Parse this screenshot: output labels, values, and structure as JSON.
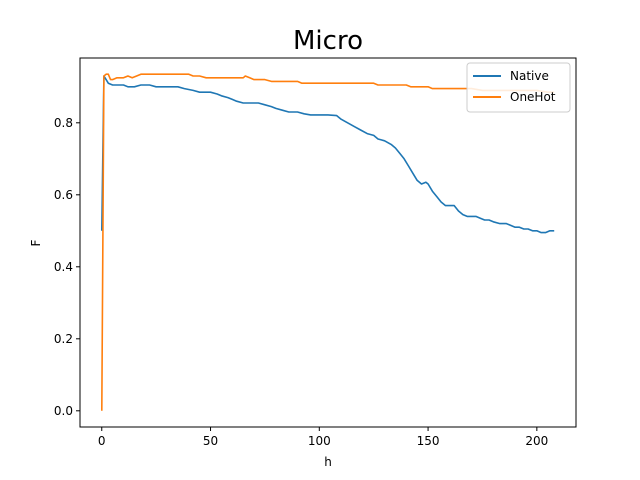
{
  "chart_data": {
    "type": "line",
    "title": "Micro",
    "xlabel": "h",
    "ylabel": "F",
    "xlim": [
      -10,
      218
    ],
    "ylim": [
      -0.045,
      0.98
    ],
    "xticks": [
      0,
      50,
      100,
      150,
      200
    ],
    "yticks": [
      0.0,
      0.2,
      0.4,
      0.6,
      0.8
    ],
    "ytick_labels": [
      "0.0",
      "0.2",
      "0.4",
      "0.6",
      "0.8"
    ],
    "grid": false,
    "legend": {
      "position": "top-right"
    },
    "series": [
      {
        "name": "Native",
        "color": "#1f77b4",
        "points": [
          [
            0,
            0.5
          ],
          [
            1,
            0.93
          ],
          [
            2,
            0.92
          ],
          [
            3,
            0.91
          ],
          [
            5,
            0.905
          ],
          [
            10,
            0.905
          ],
          [
            12,
            0.9
          ],
          [
            15,
            0.9
          ],
          [
            18,
            0.905
          ],
          [
            20,
            0.905
          ],
          [
            22,
            0.905
          ],
          [
            25,
            0.9
          ],
          [
            30,
            0.9
          ],
          [
            35,
            0.9
          ],
          [
            38,
            0.895
          ],
          [
            42,
            0.89
          ],
          [
            45,
            0.885
          ],
          [
            50,
            0.885
          ],
          [
            53,
            0.88
          ],
          [
            55,
            0.875
          ],
          [
            58,
            0.87
          ],
          [
            60,
            0.865
          ],
          [
            62,
            0.86
          ],
          [
            65,
            0.855
          ],
          [
            68,
            0.855
          ],
          [
            72,
            0.855
          ],
          [
            75,
            0.85
          ],
          [
            78,
            0.845
          ],
          [
            80,
            0.84
          ],
          [
            83,
            0.835
          ],
          [
            86,
            0.83
          ],
          [
            90,
            0.83
          ],
          [
            93,
            0.825
          ],
          [
            96,
            0.822
          ],
          [
            100,
            0.822
          ],
          [
            104,
            0.822
          ],
          [
            108,
            0.82
          ],
          [
            110,
            0.81
          ],
          [
            113,
            0.8
          ],
          [
            116,
            0.79
          ],
          [
            119,
            0.78
          ],
          [
            122,
            0.77
          ],
          [
            125,
            0.765
          ],
          [
            127,
            0.755
          ],
          [
            130,
            0.75
          ],
          [
            133,
            0.74
          ],
          [
            135,
            0.73
          ],
          [
            137,
            0.715
          ],
          [
            139,
            0.7
          ],
          [
            141,
            0.68
          ],
          [
            143,
            0.66
          ],
          [
            145,
            0.64
          ],
          [
            147,
            0.63
          ],
          [
            149,
            0.635
          ],
          [
            150,
            0.63
          ],
          [
            152,
            0.61
          ],
          [
            154,
            0.595
          ],
          [
            156,
            0.58
          ],
          [
            158,
            0.57
          ],
          [
            160,
            0.57
          ],
          [
            162,
            0.57
          ],
          [
            164,
            0.555
          ],
          [
            166,
            0.545
          ],
          [
            168,
            0.54
          ],
          [
            170,
            0.54
          ],
          [
            172,
            0.54
          ],
          [
            174,
            0.535
          ],
          [
            176,
            0.53
          ],
          [
            178,
            0.53
          ],
          [
            180,
            0.525
          ],
          [
            183,
            0.52
          ],
          [
            186,
            0.52
          ],
          [
            188,
            0.515
          ],
          [
            190,
            0.51
          ],
          [
            192,
            0.51
          ],
          [
            194,
            0.505
          ],
          [
            196,
            0.505
          ],
          [
            198,
            0.5
          ],
          [
            200,
            0.5
          ],
          [
            202,
            0.495
          ],
          [
            204,
            0.495
          ],
          [
            206,
            0.5
          ],
          [
            208,
            0.5
          ]
        ]
      },
      {
        "name": "OneHot",
        "color": "#ff7f0e",
        "points": [
          [
            0,
            0.0
          ],
          [
            1,
            0.93
          ],
          [
            2,
            0.935
          ],
          [
            3,
            0.935
          ],
          [
            4,
            0.92
          ],
          [
            5,
            0.92
          ],
          [
            7,
            0.925
          ],
          [
            10,
            0.925
          ],
          [
            12,
            0.93
          ],
          [
            14,
            0.925
          ],
          [
            16,
            0.93
          ],
          [
            18,
            0.935
          ],
          [
            20,
            0.935
          ],
          [
            25,
            0.935
          ],
          [
            30,
            0.935
          ],
          [
            35,
            0.935
          ],
          [
            40,
            0.935
          ],
          [
            42,
            0.93
          ],
          [
            45,
            0.93
          ],
          [
            48,
            0.925
          ],
          [
            50,
            0.925
          ],
          [
            55,
            0.925
          ],
          [
            60,
            0.925
          ],
          [
            65,
            0.925
          ],
          [
            66,
            0.93
          ],
          [
            68,
            0.925
          ],
          [
            70,
            0.92
          ],
          [
            75,
            0.92
          ],
          [
            78,
            0.915
          ],
          [
            80,
            0.915
          ],
          [
            85,
            0.915
          ],
          [
            90,
            0.915
          ],
          [
            92,
            0.91
          ],
          [
            95,
            0.91
          ],
          [
            100,
            0.91
          ],
          [
            105,
            0.91
          ],
          [
            110,
            0.91
          ],
          [
            115,
            0.91
          ],
          [
            120,
            0.91
          ],
          [
            125,
            0.91
          ],
          [
            127,
            0.905
          ],
          [
            130,
            0.905
          ],
          [
            135,
            0.905
          ],
          [
            140,
            0.905
          ],
          [
            142,
            0.9
          ],
          [
            145,
            0.9
          ],
          [
            150,
            0.9
          ],
          [
            152,
            0.895
          ],
          [
            155,
            0.895
          ],
          [
            160,
            0.895
          ],
          [
            165,
            0.895
          ],
          [
            170,
            0.895
          ],
          [
            175,
            0.89
          ],
          [
            180,
            0.89
          ],
          [
            185,
            0.89
          ],
          [
            190,
            0.89
          ],
          [
            195,
            0.89
          ],
          [
            200,
            0.89
          ],
          [
            205,
            0.885
          ],
          [
            208,
            0.885
          ]
        ]
      }
    ]
  }
}
